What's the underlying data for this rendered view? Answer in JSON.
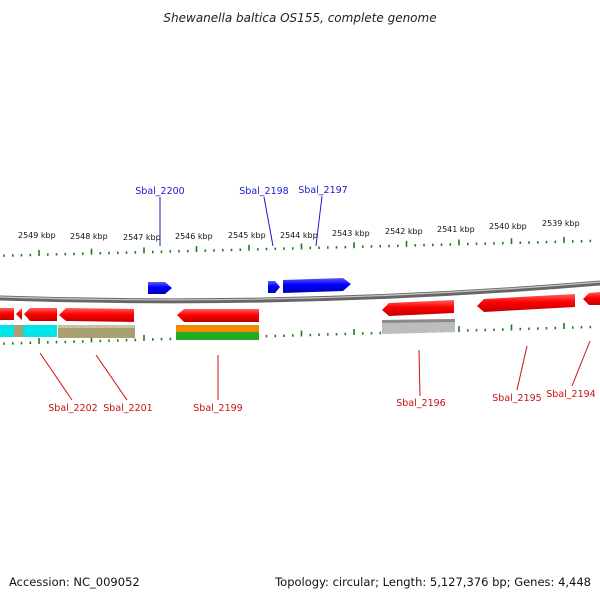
{
  "title": "Shewanella baltica OS155, complete genome",
  "footer": {
    "accession": "Accession: NC_009052",
    "topology": "Topology: circular; Length: 5,127,376 bp; Genes: 4,448"
  },
  "scale_labels": [
    "2549 kbp",
    "2548 kbp",
    "2547 kbp",
    "2546 kbp",
    "2545 kbp",
    "2544 kbp",
    "2543 kbp",
    "2542 kbp",
    "2541 kbp",
    "2540 kbp",
    "2539 kbp"
  ],
  "genes_forward": [
    {
      "name": "Sbal_2200",
      "color": "#0000ee"
    },
    {
      "name": "Sbal_2198",
      "color": "#0000ee"
    },
    {
      "name": "Sbal_2197",
      "color": "#0000ee"
    }
  ],
  "genes_reverse": [
    {
      "name": "Sbal_2202",
      "color": "#ee0000"
    },
    {
      "name": "Sbal_2201",
      "color": "#ee0000"
    },
    {
      "name": "Sbal_2199",
      "color": "#ee0000"
    },
    {
      "name": "Sbal_2196",
      "color": "#ee0000"
    },
    {
      "name": "Sbal_2195",
      "color": "#ee0000"
    },
    {
      "name": "Sbal_2194",
      "color": "#ee0000"
    }
  ],
  "colors": {
    "backbone": "#777777",
    "ticks": "#1e7a1e",
    "forward": "#0000ee",
    "reverse": "#ee0000",
    "feature_cyan": "#00e5e5",
    "feature_olive": "#a8a070",
    "feature_orange": "#f08c00",
    "feature_green": "#22aa22",
    "feature_gray": "#bdbdbd"
  }
}
